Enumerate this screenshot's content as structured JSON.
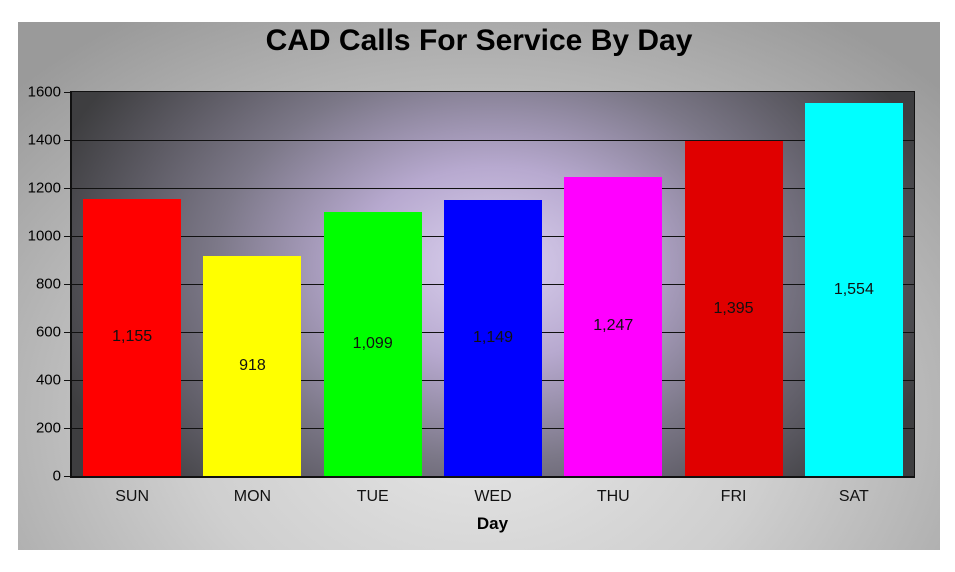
{
  "chart_data": {
    "type": "bar",
    "title": "CAD Calls For Service By Day",
    "xlabel": "Day",
    "ylabel": "",
    "categories": [
      "SUN",
      "MON",
      "TUE",
      "WED",
      "THU",
      "FRI",
      "SAT"
    ],
    "values": [
      1155,
      918,
      1099,
      1149,
      1247,
      1395,
      1554
    ],
    "value_labels": [
      "1,155",
      "918",
      "1,099",
      "1,149",
      "1,247",
      "1,395",
      "1,554"
    ],
    "colors": [
      "#ff0000",
      "#ffff00",
      "#00ff00",
      "#0000ff",
      "#ff00ff",
      "#e00000",
      "#00ffff"
    ],
    "ylim": [
      0,
      1600
    ],
    "yticks": [
      0,
      200,
      400,
      600,
      800,
      1000,
      1200,
      1400,
      1600
    ],
    "grid": true,
    "legend": null
  }
}
